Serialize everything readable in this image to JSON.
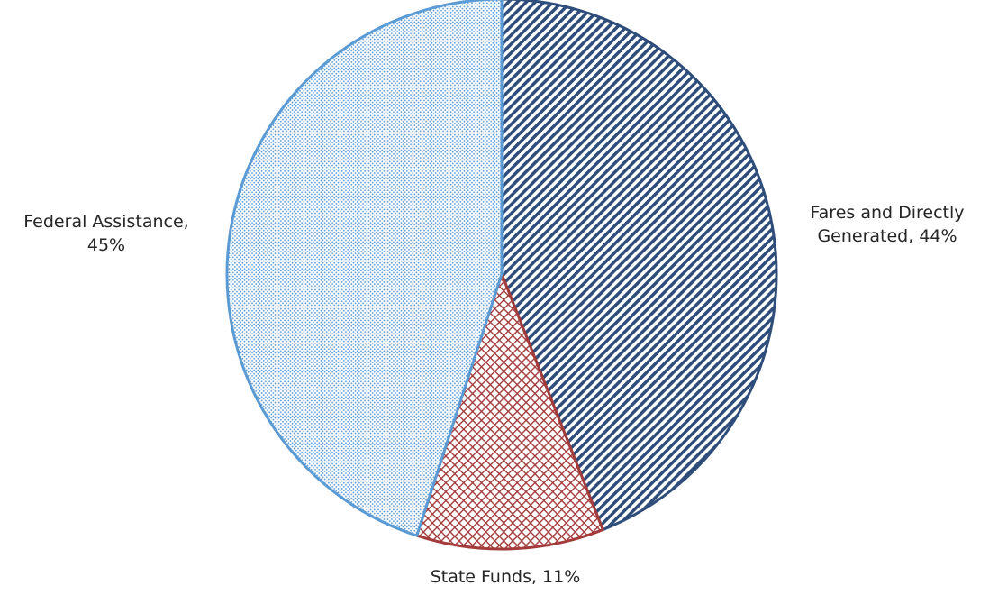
{
  "chart_data": {
    "type": "pie",
    "title": "",
    "slices": [
      {
        "label_line1": "Fares and Directly",
        "label_line2": "Generated, 44%",
        "value": 44,
        "color": "#2E4D7B",
        "pattern": "diagonal-stripes"
      },
      {
        "label_line1": "State Funds, 11%",
        "label_line2": "",
        "value": 11,
        "color": "#A33B3B",
        "pattern": "diamond-crosshatch"
      },
      {
        "label_line1": "Federal Assistance,",
        "label_line2": "45%",
        "value": 45,
        "color": "#5B9BD5",
        "pattern": "fine-dots"
      }
    ],
    "legend": "none",
    "start": "12 o'clock",
    "direction": "clockwise"
  }
}
